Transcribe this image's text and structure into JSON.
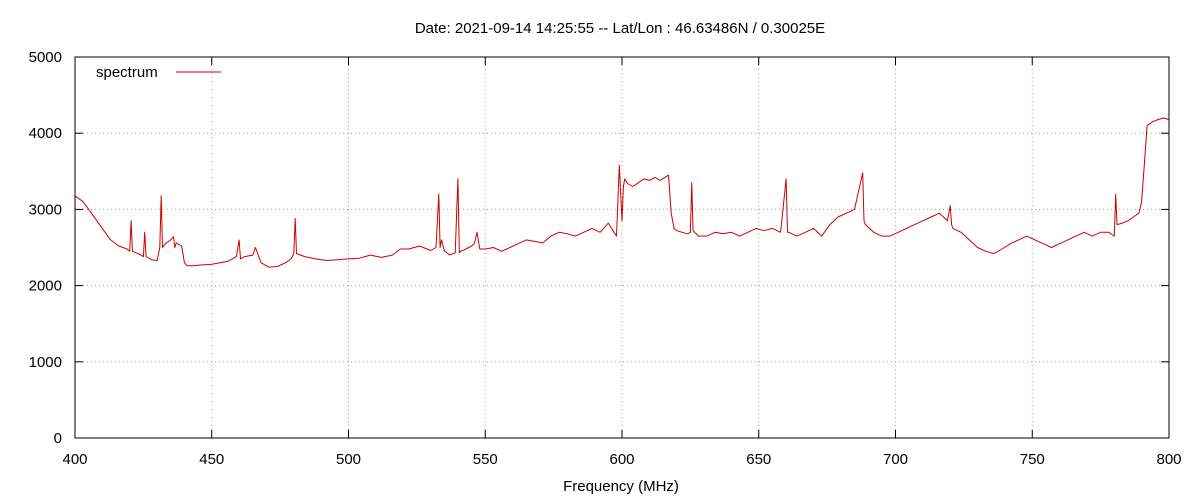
{
  "chart_data": {
    "type": "line",
    "title": "Date: 2021-09-14 14:25:55  --  Lat/Lon : 46.63486N / 0.30025E",
    "xlabel": "Frequency (MHz)",
    "ylabel": "",
    "xlim": [
      400,
      800
    ],
    "ylim": [
      0,
      5000
    ],
    "xticks": [
      400,
      450,
      500,
      550,
      600,
      650,
      700,
      750,
      800
    ],
    "yticks": [
      0,
      1000,
      2000,
      3000,
      4000,
      5000
    ],
    "grid": true,
    "legend": "top-left",
    "series": [
      {
        "name": "spectrum",
        "color": "#cc0000",
        "x": [
          400,
          403,
          406,
          410,
          413,
          416,
          419,
          420,
          420.5,
          421,
          423,
          425,
          425.5,
          426,
          428,
          430,
          431,
          431.5,
          432,
          433,
          435,
          436,
          436.5,
          437,
          439,
          440,
          441,
          443,
          446,
          450,
          453,
          456,
          459,
          460,
          460.5,
          462,
          465,
          466,
          468,
          471,
          474,
          477,
          479,
          480,
          480.5,
          481,
          484,
          488,
          492,
          496,
          500,
          504,
          508,
          512,
          516,
          519,
          522,
          526,
          530,
          532,
          533,
          533.5,
          534,
          535,
          537,
          539,
          540,
          540.5,
          541,
          543,
          545,
          546,
          547,
          548,
          550,
          553,
          556,
          559,
          562,
          565,
          568,
          571,
          574,
          577,
          580,
          583,
          586,
          589,
          592,
          595,
          598,
          599,
          600,
          600.5,
          601,
          602,
          604,
          606,
          608,
          610,
          612,
          614,
          617,
          618,
          619,
          620,
          622,
          624,
          625,
          625.5,
          626,
          628,
          631,
          634,
          637,
          640,
          643,
          646,
          649,
          652,
          655,
          658,
          660,
          660.5,
          661,
          664,
          667,
          670,
          673,
          676,
          679,
          682,
          685,
          688,
          688.5,
          689,
          692,
          695,
          698,
          701,
          704,
          707,
          710,
          713,
          716,
          719,
          720,
          720.5,
          721,
          724,
          727,
          730,
          733,
          736,
          739,
          742,
          745,
          748,
          751,
          754,
          757,
          760,
          763,
          766,
          769,
          772,
          775,
          778,
          780,
          780.5,
          781,
          783,
          785,
          787,
          789,
          790,
          791,
          792,
          794,
          796,
          798,
          800
        ],
        "values": [
          3180,
          3100,
          2950,
          2750,
          2600,
          2520,
          2480,
          2450,
          2850,
          2450,
          2420,
          2380,
          2700,
          2380,
          2340,
          2330,
          2500,
          3180,
          2500,
          2550,
          2600,
          2640,
          2500,
          2560,
          2520,
          2300,
          2260,
          2260,
          2270,
          2280,
          2300,
          2320,
          2380,
          2600,
          2350,
          2380,
          2400,
          2500,
          2300,
          2240,
          2250,
          2300,
          2350,
          2420,
          2880,
          2420,
          2380,
          2350,
          2330,
          2340,
          2350,
          2360,
          2400,
          2370,
          2400,
          2480,
          2480,
          2520,
          2460,
          2500,
          3200,
          2500,
          2600,
          2460,
          2400,
          2430,
          3400,
          2430,
          2450,
          2480,
          2520,
          2550,
          2700,
          2480,
          2480,
          2500,
          2450,
          2500,
          2550,
          2600,
          2580,
          2560,
          2650,
          2700,
          2680,
          2650,
          2700,
          2750,
          2700,
          2820,
          2650,
          3580,
          2850,
          3300,
          3400,
          3340,
          3300,
          3350,
          3400,
          3380,
          3420,
          3380,
          3450,
          2950,
          2750,
          2720,
          2700,
          2680,
          2700,
          3350,
          2720,
          2650,
          2650,
          2700,
          2680,
          2700,
          2650,
          2700,
          2750,
          2720,
          2750,
          2700,
          3400,
          2700,
          2700,
          2650,
          2700,
          2750,
          2650,
          2800,
          2900,
          2950,
          3000,
          3480,
          2850,
          2800,
          2700,
          2650,
          2650,
          2700,
          2750,
          2800,
          2850,
          2900,
          2950,
          2850,
          3050,
          2800,
          2750,
          2700,
          2600,
          2500,
          2450,
          2420,
          2480,
          2550,
          2600,
          2650,
          2600,
          2550,
          2500,
          2550,
          2600,
          2650,
          2700,
          2650,
          2700,
          2700,
          2650,
          3200,
          2800,
          2820,
          2850,
          2900,
          2950,
          3100,
          3600,
          4100,
          4150,
          4180,
          4200,
          4180
        ]
      }
    ]
  }
}
